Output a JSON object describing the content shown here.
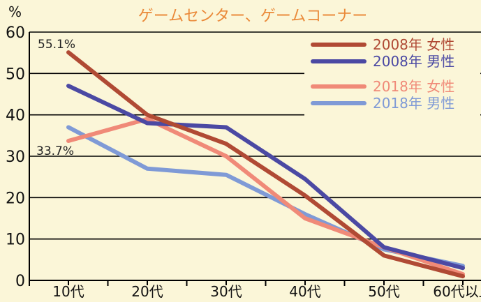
{
  "chart_data": {
    "type": "line",
    "title": "ゲームセンター、ゲームコーナー",
    "ylabel": "%",
    "xlabel": "",
    "ylim": [
      0,
      60
    ],
    "yticks": [
      0,
      10,
      20,
      30,
      40,
      50,
      60
    ],
    "categories": [
      "10代",
      "20代",
      "30代",
      "40代",
      "50代",
      "60代以上"
    ],
    "grid": true,
    "legend_position": "top-right",
    "series": [
      {
        "name": "2008年 女性",
        "color": "#b04a34",
        "values": [
          55.1,
          40,
          33,
          20.5,
          6,
          1
        ]
      },
      {
        "name": "2008年 男性",
        "color": "#4b49a3",
        "values": [
          47,
          38,
          37,
          24.5,
          8,
          3
        ]
      },
      {
        "name": "2018年 女性",
        "color": "#f08a78",
        "values": [
          33.7,
          39,
          30,
          15,
          8,
          1.5
        ]
      },
      {
        "name": "2018年 男性",
        "color": "#7f9ad6",
        "values": [
          37,
          27,
          25.5,
          16,
          7.5,
          3.5
        ]
      }
    ],
    "annotations": [
      {
        "text": "55.1%",
        "series": 0,
        "index": 0
      },
      {
        "text": "33.7%",
        "series": 2,
        "index": 0
      }
    ]
  }
}
